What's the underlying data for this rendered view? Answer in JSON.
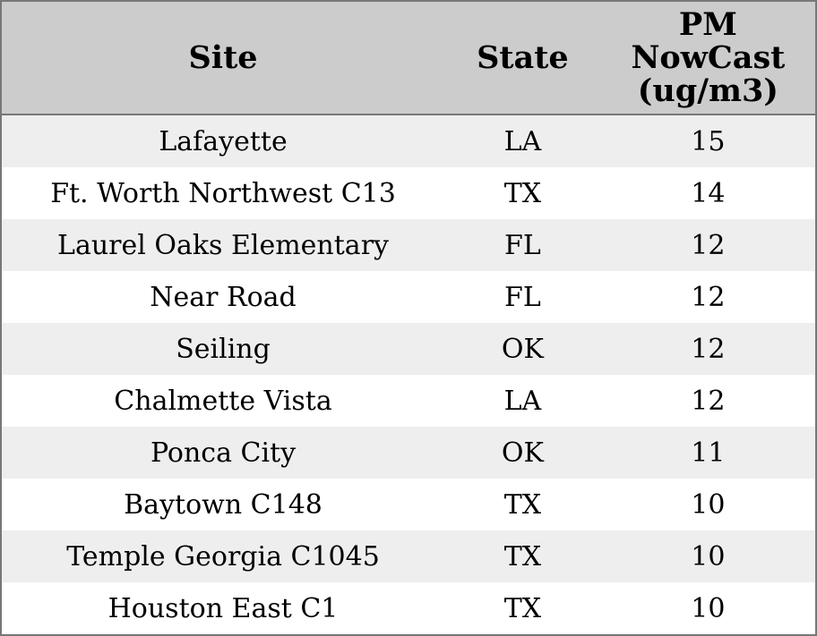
{
  "chart_data": {
    "type": "table",
    "title": "",
    "columns": [
      "Site",
      "State",
      "PM NowCast (ug/m3)"
    ],
    "rows": [
      [
        "Lafayette",
        "LA",
        15
      ],
      [
        "Ft. Worth Northwest C13",
        "TX",
        14
      ],
      [
        "Laurel Oaks Elementary",
        "FL",
        12
      ],
      [
        "Near Road",
        "FL",
        12
      ],
      [
        "Seiling",
        "OK",
        12
      ],
      [
        "Chalmette Vista",
        "LA",
        12
      ],
      [
        "Ponca City",
        "OK",
        11
      ],
      [
        "Baytown C148",
        "TX",
        10
      ],
      [
        "Temple Georgia C1045",
        "TX",
        10
      ],
      [
        "Houston East C1",
        "TX",
        10
      ]
    ]
  },
  "header": {
    "site": "Site",
    "state": "State",
    "pm_lines": [
      "PM",
      "NowCast",
      "(ug/m3)"
    ]
  },
  "colors": {
    "header_bg": "#cccccc",
    "row_stripe_bg": "#eeeeee",
    "row_plain_bg": "#ffffff",
    "border": "#777777",
    "text": "#000000"
  }
}
